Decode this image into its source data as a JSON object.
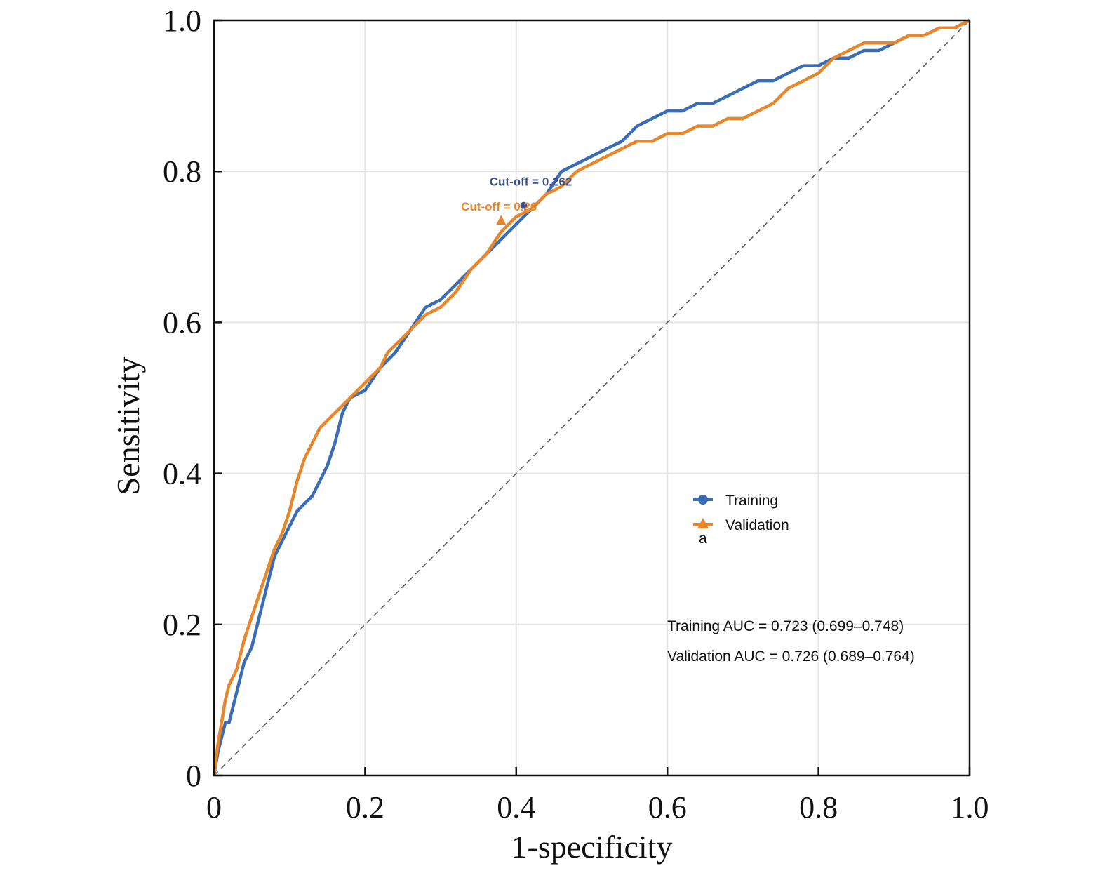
{
  "chart_data": {
    "type": "line",
    "xlabel": "1-specificity",
    "ylabel": "Sensitivity",
    "xlim": [
      0,
      1
    ],
    "ylim": [
      0,
      1
    ],
    "x_ticks": [
      {
        "value": 0,
        "label": "0"
      },
      {
        "value": 0.2,
        "label": "0.2"
      },
      {
        "value": 0.4,
        "label": "0.4"
      },
      {
        "value": 0.6,
        "label": "0.6"
      },
      {
        "value": 0.8,
        "label": "0.8"
      },
      {
        "value": 1.0,
        "label": "1.0"
      }
    ],
    "y_ticks": [
      {
        "value": 0,
        "label": "0"
      },
      {
        "value": 0.2,
        "label": "0.2"
      },
      {
        "value": 0.4,
        "label": "0.4"
      },
      {
        "value": 0.6,
        "label": "0.6"
      },
      {
        "value": 0.8,
        "label": "0.8"
      },
      {
        "value": 1.0,
        "label": "1.0"
      }
    ],
    "grid": true,
    "reference_line": "diagonal",
    "series": [
      {
        "name": "Training",
        "color": "#3A6DB5",
        "marker": "circle",
        "x": [
          0,
          0.005,
          0.01,
          0.015,
          0.02,
          0.03,
          0.04,
          0.05,
          0.06,
          0.07,
          0.08,
          0.09,
          0.1,
          0.11,
          0.12,
          0.13,
          0.14,
          0.15,
          0.16,
          0.17,
          0.18,
          0.2,
          0.22,
          0.24,
          0.26,
          0.28,
          0.3,
          0.32,
          0.34,
          0.36,
          0.38,
          0.4,
          0.42,
          0.44,
          0.46,
          0.48,
          0.5,
          0.52,
          0.54,
          0.56,
          0.58,
          0.6,
          0.62,
          0.64,
          0.66,
          0.68,
          0.7,
          0.72,
          0.74,
          0.76,
          0.78,
          0.8,
          0.82,
          0.84,
          0.86,
          0.88,
          0.9,
          0.92,
          0.94,
          0.96,
          0.98,
          1.0
        ],
        "y": [
          0,
          0.03,
          0.05,
          0.07,
          0.07,
          0.11,
          0.15,
          0.17,
          0.21,
          0.25,
          0.29,
          0.31,
          0.33,
          0.35,
          0.36,
          0.37,
          0.39,
          0.41,
          0.44,
          0.48,
          0.5,
          0.51,
          0.54,
          0.56,
          0.59,
          0.62,
          0.63,
          0.65,
          0.67,
          0.69,
          0.71,
          0.73,
          0.75,
          0.77,
          0.8,
          0.81,
          0.82,
          0.83,
          0.84,
          0.86,
          0.87,
          0.88,
          0.88,
          0.89,
          0.89,
          0.9,
          0.91,
          0.92,
          0.92,
          0.93,
          0.94,
          0.94,
          0.95,
          0.95,
          0.96,
          0.96,
          0.97,
          0.98,
          0.98,
          0.99,
          0.99,
          1.0
        ]
      },
      {
        "name": "Validation",
        "color": "#E8862C",
        "marker": "triangle",
        "x": [
          0,
          0.005,
          0.01,
          0.015,
          0.02,
          0.03,
          0.04,
          0.05,
          0.06,
          0.07,
          0.08,
          0.09,
          0.1,
          0.11,
          0.12,
          0.13,
          0.14,
          0.15,
          0.16,
          0.17,
          0.18,
          0.2,
          0.22,
          0.23,
          0.24,
          0.26,
          0.28,
          0.3,
          0.32,
          0.34,
          0.36,
          0.38,
          0.4,
          0.42,
          0.44,
          0.46,
          0.48,
          0.5,
          0.52,
          0.54,
          0.56,
          0.58,
          0.6,
          0.62,
          0.64,
          0.66,
          0.68,
          0.7,
          0.72,
          0.74,
          0.76,
          0.78,
          0.8,
          0.82,
          0.84,
          0.86,
          0.88,
          0.9,
          0.92,
          0.94,
          0.96,
          0.98,
          1.0
        ],
        "y": [
          0,
          0.04,
          0.07,
          0.1,
          0.12,
          0.14,
          0.18,
          0.21,
          0.24,
          0.27,
          0.3,
          0.32,
          0.35,
          0.39,
          0.42,
          0.44,
          0.46,
          0.47,
          0.48,
          0.49,
          0.5,
          0.52,
          0.54,
          0.56,
          0.57,
          0.59,
          0.61,
          0.62,
          0.64,
          0.67,
          0.69,
          0.72,
          0.74,
          0.75,
          0.77,
          0.78,
          0.8,
          0.81,
          0.82,
          0.83,
          0.84,
          0.84,
          0.85,
          0.85,
          0.86,
          0.86,
          0.87,
          0.87,
          0.88,
          0.89,
          0.91,
          0.92,
          0.93,
          0.95,
          0.96,
          0.97,
          0.97,
          0.97,
          0.98,
          0.98,
          0.99,
          0.99,
          1.0
        ]
      }
    ],
    "cutoffs": [
      {
        "series": "Training",
        "label": "Cut-off = 0.262",
        "x": 0.41,
        "y": 0.755,
        "color": "#3A4F8F"
      },
      {
        "series": "Validation",
        "label": "Cut-off = 0.26",
        "x": 0.38,
        "y": 0.735,
        "color": "#E8862C"
      }
    ],
    "legend": {
      "placement": "center-right",
      "extra_text": "a"
    },
    "annotations": [
      "Training AUC = 0.723 (0.699–0.748)",
      "Validation AUC = 0.726 (0.689–0.764)"
    ]
  }
}
